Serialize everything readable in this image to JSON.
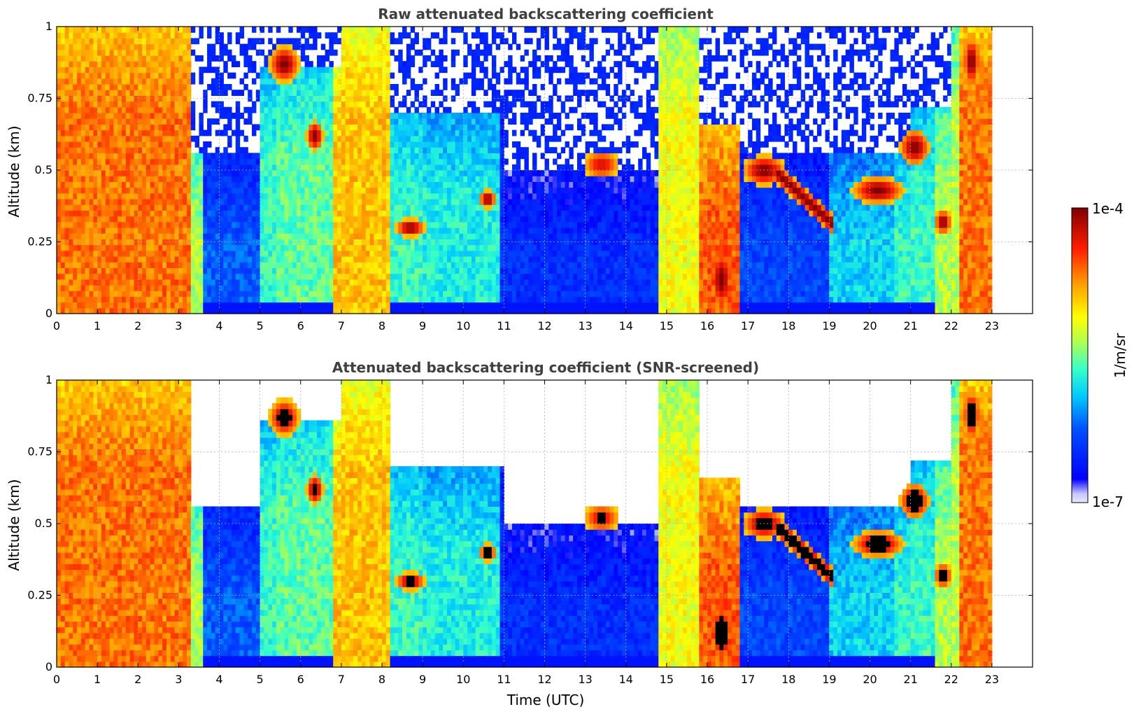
{
  "chart_data": [
    {
      "type": "heatmap",
      "title": "Raw attenuated backscattering coefficient",
      "xlabel": "",
      "ylabel": "Altitude (km)",
      "xlim": [
        0,
        24
      ],
      "ylim": [
        0,
        1
      ],
      "xticks": [
        "0",
        "1",
        "2",
        "3",
        "4",
        "5",
        "6",
        "7",
        "8",
        "9",
        "10",
        "11",
        "12",
        "13",
        "14",
        "15",
        "16",
        "17",
        "18",
        "19",
        "20",
        "21",
        "22",
        "23"
      ],
      "yticks": [
        "0",
        "0.25",
        "0.5",
        "0.75",
        "1"
      ],
      "ytick_values": [
        0,
        0.25,
        0.5,
        0.75,
        1
      ],
      "data_end_hour": 23,
      "grid": true,
      "colorscale": "jet, logarithmic",
      "screened": false
    },
    {
      "type": "heatmap",
      "title": "Attenuated backscattering coefficient (SNR-screened)",
      "xlabel": "Time (UTC)",
      "ylabel": "Altitude (km)",
      "xlim": [
        0,
        24
      ],
      "ylim": [
        0,
        1
      ],
      "xticks": [
        "0",
        "1",
        "2",
        "3",
        "4",
        "5",
        "6",
        "7",
        "8",
        "9",
        "10",
        "11",
        "12",
        "13",
        "14",
        "15",
        "16",
        "17",
        "18",
        "19",
        "20",
        "21",
        "22",
        "23"
      ],
      "yticks": [
        "0",
        "0.25",
        "0.5",
        "0.75",
        "1"
      ],
      "ytick_values": [
        0,
        0.25,
        0.5,
        0.75,
        1
      ],
      "data_end_hour": 23,
      "grid": true,
      "colorscale": "jet, logarithmic",
      "screened": true
    }
  ],
  "colorbar": {
    "label": "1/m/sr",
    "max_label": "1e-4",
    "min_label": "1e-7",
    "max_value": 0.0001,
    "min_value": 1e-07,
    "scale": "log"
  }
}
